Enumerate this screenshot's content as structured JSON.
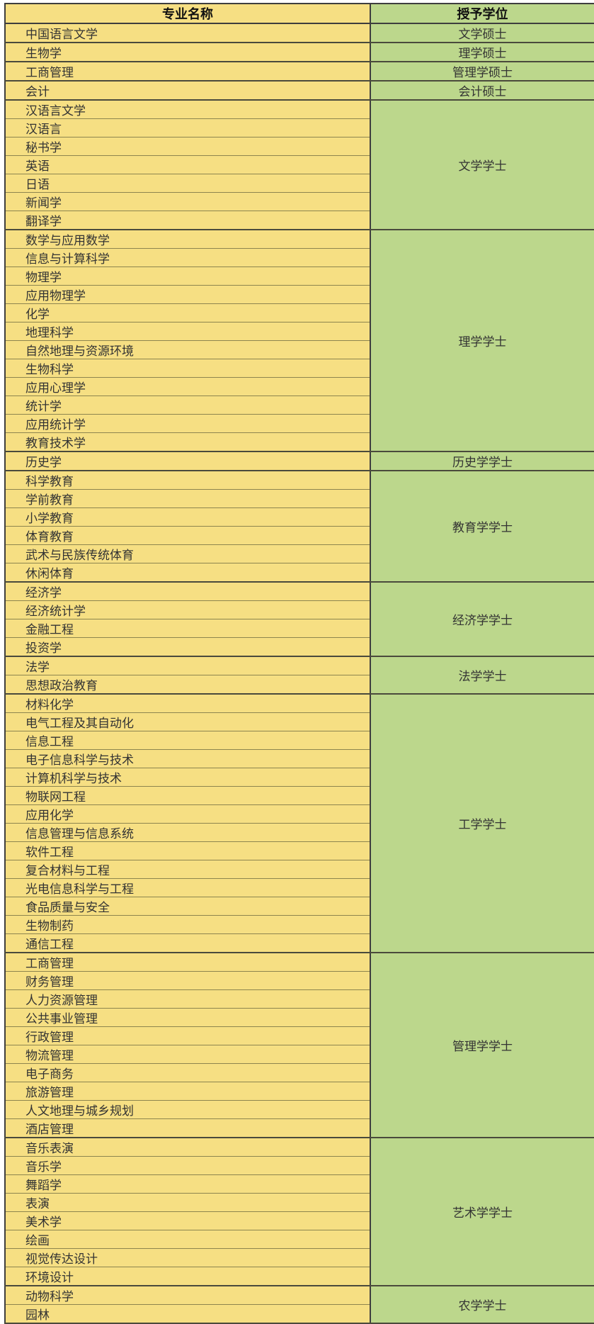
{
  "table": {
    "columns": [
      {
        "key": "major",
        "label": "专业名称"
      },
      {
        "key": "degree",
        "label": "授予学位"
      }
    ],
    "groups": [
      {
        "degree": "文学硕士",
        "majors": [
          "中国语言文学"
        ]
      },
      {
        "degree": "理学硕士",
        "majors": [
          "生物学"
        ]
      },
      {
        "degree": "管理学硕士",
        "majors": [
          "工商管理"
        ]
      },
      {
        "degree": "会计硕士",
        "majors": [
          "会计"
        ]
      },
      {
        "degree": "文学学士",
        "majors": [
          "汉语言文学",
          "汉语言",
          "秘书学",
          "英语",
          "日语",
          "新闻学",
          "翻译学"
        ]
      },
      {
        "degree": "理学学士",
        "majors": [
          "数学与应用数学",
          "信息与计算科学",
          "物理学",
          "应用物理学",
          "化学",
          "地理科学",
          "自然地理与资源环境",
          "生物科学",
          "应用心理学",
          "统计学",
          "应用统计学",
          "教育技术学"
        ]
      },
      {
        "degree": "历史学学士",
        "majors": [
          "历史学"
        ]
      },
      {
        "degree": "教育学学士",
        "majors": [
          "科学教育",
          "学前教育",
          "小学教育",
          "体育教育",
          "武术与民族传统体育",
          "休闲体育"
        ]
      },
      {
        "degree": "经济学学士",
        "majors": [
          "经济学",
          "经济统计学",
          "金融工程",
          "投资学"
        ]
      },
      {
        "degree": "法学学士",
        "majors": [
          "法学",
          "思想政治教育"
        ]
      },
      {
        "degree": "工学学士",
        "majors": [
          "材料化学",
          "电气工程及其自动化",
          "信息工程",
          "电子信息科学与技术",
          "计算机科学与技术",
          "物联网工程",
          "应用化学",
          "信息管理与信息系统",
          "软件工程",
          "复合材料与工程",
          "光电信息科学与工程",
          "食品质量与安全",
          "生物制药",
          "通信工程"
        ]
      },
      {
        "degree": "管理学学士",
        "majors": [
          "工商管理",
          "财务管理",
          "人力资源管理",
          "公共事业管理",
          "行政管理",
          "物流管理",
          "电子商务",
          "旅游管理",
          "人文地理与城乡规划",
          "酒店管理"
        ]
      },
      {
        "degree": "艺术学学士",
        "majors": [
          "音乐表演",
          "音乐学",
          "舞蹈学",
          "表演",
          "美术学",
          "绘画",
          "视觉传达设计",
          "环境设计"
        ]
      },
      {
        "degree": "农学学士",
        "majors": [
          "动物科学",
          "园林"
        ]
      }
    ],
    "colors": {
      "major_column_bg": "#F6DF83",
      "degree_column_bg": "#BCD78C",
      "outer_border": "#3E3E3E",
      "group_border": "#4A4A3C",
      "row_border": "#8D854F",
      "text": "#333333"
    }
  }
}
